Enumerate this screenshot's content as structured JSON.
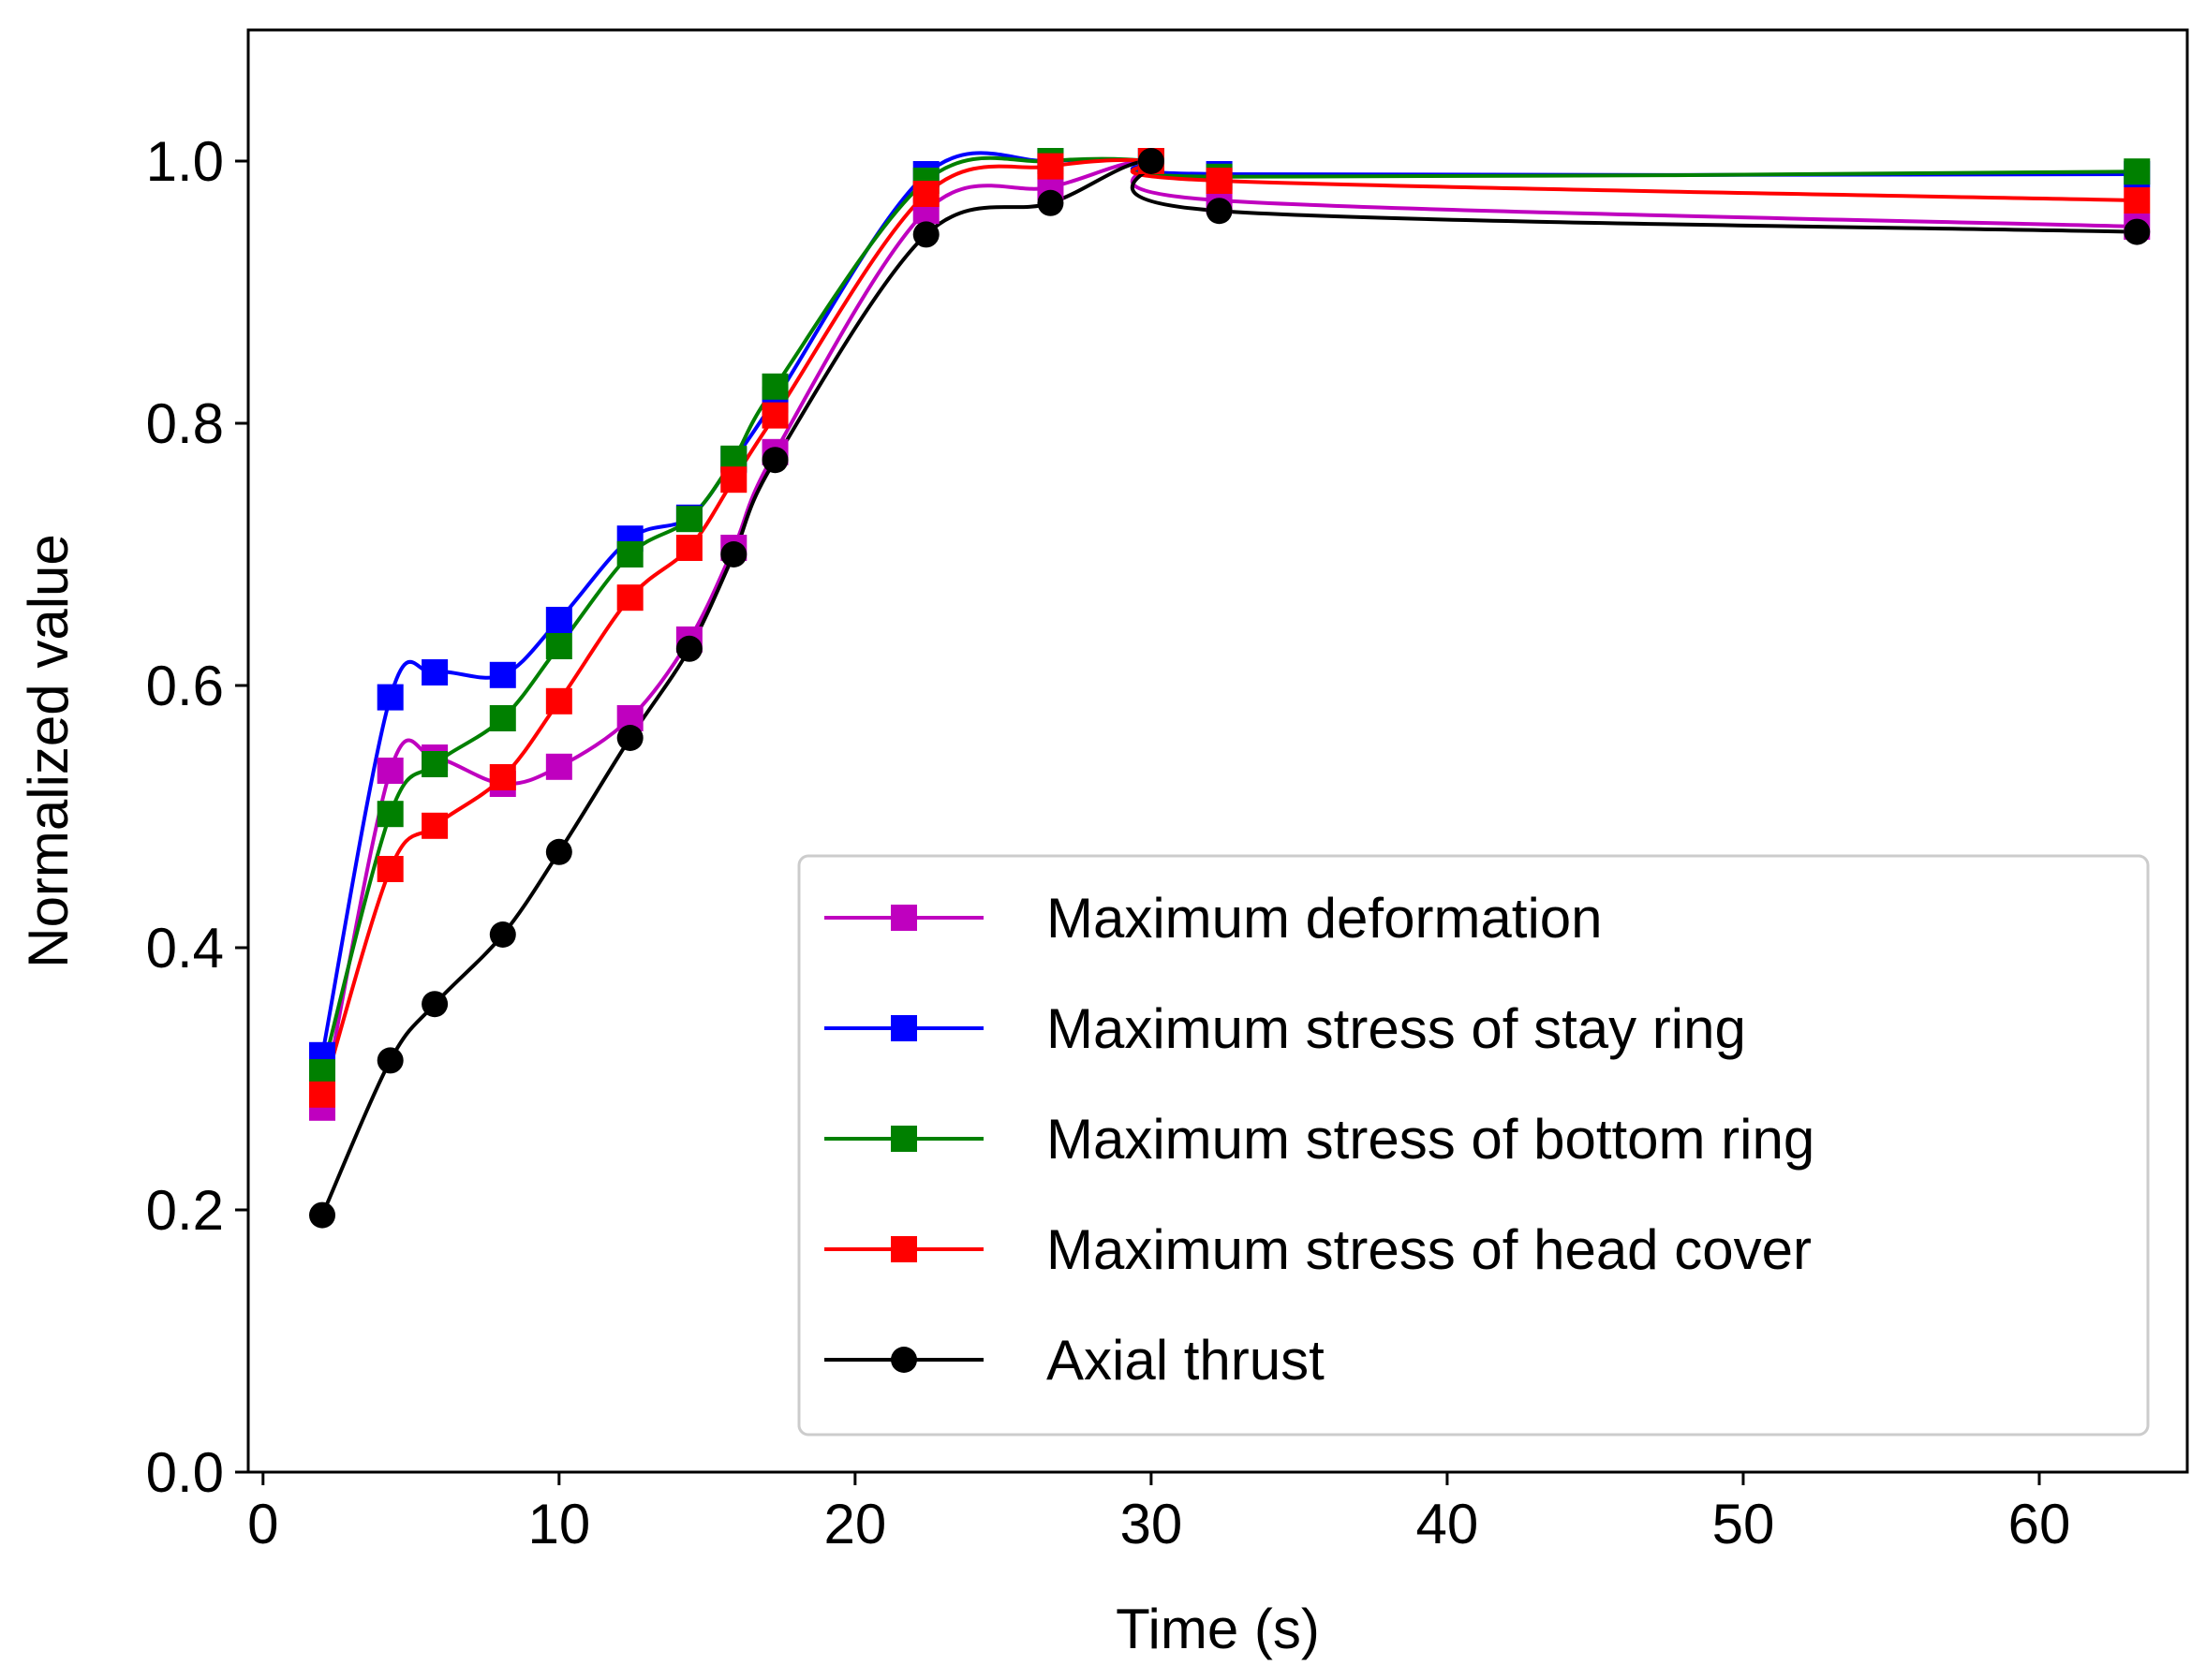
{
  "chart_data": {
    "type": "line",
    "title": "",
    "xlabel": "Time (s)",
    "ylabel": "Normalized value",
    "xlim": [
      -0.5,
      65
    ],
    "ylim": [
      0.0,
      1.1
    ],
    "xticks": [
      0,
      10,
      20,
      30,
      40,
      50,
      60
    ],
    "xtick_labels": [
      "0",
      "10",
      "20",
      "30",
      "40",
      "50",
      "60"
    ],
    "yticks": [
      0.0,
      0.2,
      0.4,
      0.6,
      0.8,
      1.0
    ],
    "ytick_labels": [
      "0.0",
      "0.2",
      "0.4",
      "0.6",
      "0.8",
      "1.0"
    ],
    "grid": false,
    "legend_position": "bottom-right",
    "series": [
      {
        "name": "Maximum deformation",
        "color": "#bf00bf",
        "marker": "square",
        "x": [
          2.0,
          4.3,
          5.8,
          8.1,
          10.0,
          12.4,
          14.4,
          15.9,
          17.3,
          22.4,
          26.6,
          30.0,
          32.3,
          63.3
        ],
        "y": [
          0.278,
          0.535,
          0.545,
          0.525,
          0.538,
          0.575,
          0.635,
          0.705,
          0.778,
          0.962,
          0.98,
          1.0,
          0.97,
          0.95
        ]
      },
      {
        "name": "Maximum stress of stay ring",
        "color": "#0000ff",
        "marker": "square",
        "x": [
          2.0,
          4.3,
          5.8,
          8.1,
          10.0,
          12.4,
          14.4,
          15.9,
          17.3,
          22.4,
          26.6,
          30.0,
          32.3,
          63.3
        ],
        "y": [
          0.318,
          0.591,
          0.61,
          0.608,
          0.65,
          0.712,
          0.728,
          0.772,
          0.818,
          0.99,
          1.0,
          1.0,
          0.99,
          0.99
        ]
      },
      {
        "name": "Maximum stress of bottom ring",
        "color": "#008000",
        "marker": "square",
        "x": [
          2.0,
          4.3,
          5.8,
          8.1,
          10.0,
          12.4,
          14.4,
          15.9,
          17.3,
          22.4,
          26.6,
          30.0,
          32.3,
          63.3
        ],
        "y": [
          0.305,
          0.502,
          0.54,
          0.575,
          0.63,
          0.7,
          0.727,
          0.773,
          0.828,
          0.985,
          1.0,
          1.0,
          0.988,
          0.992
        ]
      },
      {
        "name": "Maximum stress of head cover",
        "color": "#ff0000",
        "marker": "square",
        "x": [
          2.0,
          4.3,
          5.8,
          8.1,
          10.0,
          12.4,
          14.4,
          15.9,
          17.3,
          22.4,
          26.6,
          30.0,
          32.3,
          63.3
        ],
        "y": [
          0.288,
          0.46,
          0.493,
          0.53,
          0.588,
          0.667,
          0.705,
          0.757,
          0.806,
          0.975,
          0.996,
          1.0,
          0.985,
          0.97
        ]
      },
      {
        "name": "Axial thrust",
        "color": "#000000",
        "marker": "circle",
        "x": [
          2.0,
          4.3,
          5.8,
          8.1,
          10.0,
          12.4,
          14.4,
          15.9,
          17.3,
          22.4,
          26.6,
          30.0,
          32.3,
          63.3
        ],
        "y": [
          0.196,
          0.314,
          0.357,
          0.41,
          0.473,
          0.56,
          0.628,
          0.7,
          0.772,
          0.944,
          0.968,
          1.0,
          0.962,
          0.946
        ]
      }
    ]
  }
}
